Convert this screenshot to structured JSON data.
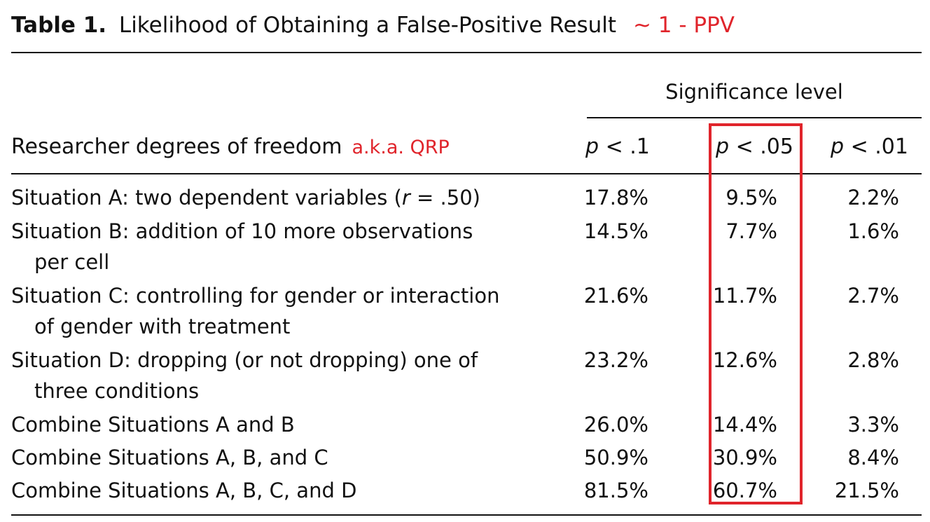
{
  "title": {
    "label": "Table 1.",
    "text": "Likelihood of Obtaining a False-Positive Result",
    "annotation": "~ 1 - PPV"
  },
  "header": {
    "significance_level": "Significance level",
    "row_header": "Researcher degrees of freedom",
    "row_header_annotation": "a.k.a. QRP",
    "columns": [
      {
        "p": "p",
        "rest": " < .1"
      },
      {
        "p": "p",
        "rest": " < .05"
      },
      {
        "p": "p",
        "rest": " < .01"
      }
    ]
  },
  "rows": [
    {
      "line1": "Situation A: two dependent variables (",
      "r": "r",
      "line1b": " = .50)",
      "line2": "",
      "v1": "17.8%",
      "v2": "9.5%",
      "v3": "2.2%"
    },
    {
      "line1": "Situation B: addition of 10 more observations",
      "line2": "per cell",
      "v1": "14.5%",
      "v2": "7.7%",
      "v3": "1.6%"
    },
    {
      "line1": "Situation C: controlling for gender or interaction",
      "line2": "of gender with treatment",
      "v1": "21.6%",
      "v2": "11.7%",
      "v3": "2.7%"
    },
    {
      "line1": "Situation D: dropping (or not dropping) one of",
      "line2": "three conditions",
      "v1": "23.2%",
      "v2": "12.6%",
      "v3": "2.8%"
    },
    {
      "line1": "Combine Situations A and B",
      "line2": "",
      "v1": "26.0%",
      "v2": "14.4%",
      "v3": "3.3%"
    },
    {
      "line1": "Combine Situations A, B, and C",
      "line2": "",
      "v1": "50.9%",
      "v2": "30.9%",
      "v3": "8.4%"
    },
    {
      "line1": "Combine Situations A, B, C, and D",
      "line2": "",
      "v1": "81.5%",
      "v2": "60.7%",
      "v3": "21.5%"
    }
  ],
  "colors": {
    "annotation": "#e0242b",
    "text": "#111111"
  }
}
